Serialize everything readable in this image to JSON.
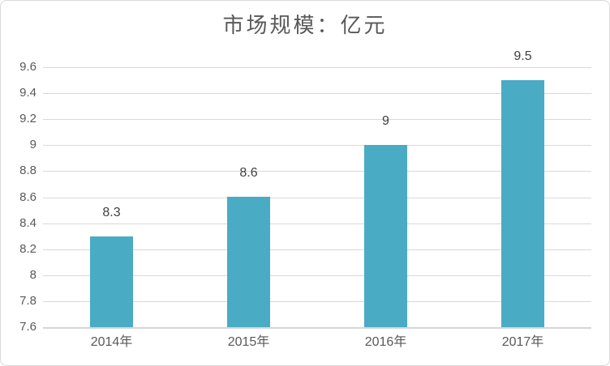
{
  "chart_data": {
    "type": "bar",
    "title": "市场规模：亿元",
    "categories": [
      "2014年",
      "2015年",
      "2016年",
      "2017年"
    ],
    "values": [
      8.3,
      8.6,
      9,
      9.5
    ],
    "value_labels": [
      "8.3",
      "8.6",
      "9",
      "9.5"
    ],
    "xlabel": "",
    "ylabel": "",
    "ylim": [
      7.6,
      9.6
    ],
    "yticks": [
      9.6,
      9.4,
      9.2,
      9,
      8.8,
      8.6,
      8.4,
      8.2,
      8,
      7.8,
      7.6
    ],
    "ytick_labels": [
      "9.6",
      "9.4",
      "9.2",
      "9",
      "8.8",
      "8.6",
      "8.4",
      "8.2",
      "8",
      "7.8",
      "7.6"
    ],
    "grid": true,
    "legend": false,
    "colors": {
      "bar": "#4aabc5",
      "gridline": "#d9d9d9",
      "axis_line": "#d5d5d5",
      "axis_labels": "#595959",
      "value_labels": "#404040",
      "title": "#595959",
      "chart_border": "#d9d9d9",
      "background": "#ffffff"
    }
  }
}
